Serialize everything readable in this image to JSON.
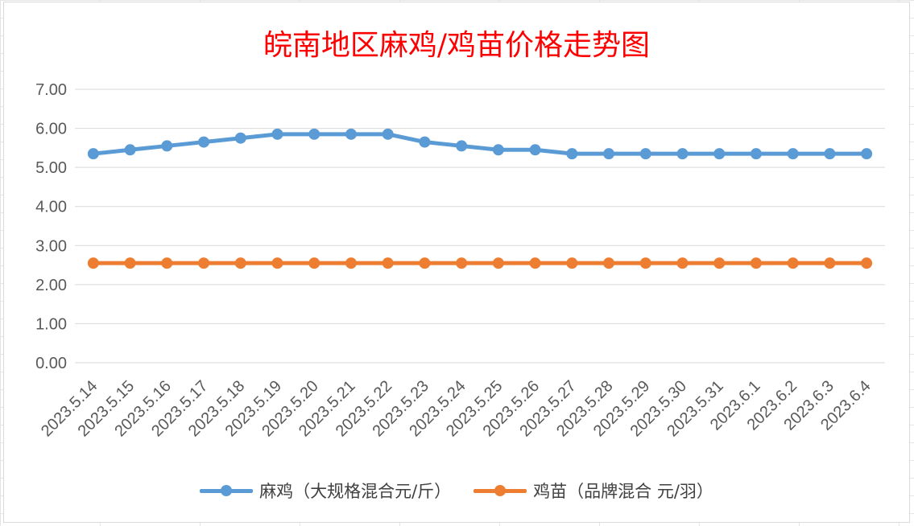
{
  "chart_data": {
    "type": "line",
    "title": "皖南地区麻鸡/鸡苗价格走势图",
    "categories": [
      "2023.5.14",
      "2023.5.15",
      "2023.5.16",
      "2023.5.17",
      "2023.5.18",
      "2023.5.19",
      "2023.5.20",
      "2023.5.21",
      "2023.5.22",
      "2023.5.23",
      "2023.5.24",
      "2023.5.25",
      "2023.5.26",
      "2023.5.27",
      "2023.5.28",
      "2023.5.29",
      "2023.5.30",
      "2023.5.31",
      "2023.6.1",
      "2023.6.2",
      "2023.6.3",
      "2023.6.4"
    ],
    "ylim": [
      0,
      7
    ],
    "yticks": [
      "0.00",
      "1.00",
      "2.00",
      "3.00",
      "4.00",
      "5.00",
      "6.00",
      "7.00"
    ],
    "grid": true,
    "legend_position": "bottom",
    "series": [
      {
        "name": "麻鸡（大规格混合元/斤）",
        "color": "#5b9bd5",
        "values": [
          5.35,
          5.45,
          5.55,
          5.65,
          5.75,
          5.85,
          5.85,
          5.85,
          5.85,
          5.65,
          5.55,
          5.45,
          5.45,
          5.35,
          5.35,
          5.35,
          5.35,
          5.35,
          5.35,
          5.35,
          5.35,
          5.35
        ]
      },
      {
        "name": "鸡苗（品牌混合 元/羽）",
        "color": "#ed7d31",
        "values": [
          2.55,
          2.55,
          2.55,
          2.55,
          2.55,
          2.55,
          2.55,
          2.55,
          2.55,
          2.55,
          2.55,
          2.55,
          2.55,
          2.55,
          2.55,
          2.55,
          2.55,
          2.55,
          2.55,
          2.55,
          2.55,
          2.55
        ]
      }
    ]
  }
}
